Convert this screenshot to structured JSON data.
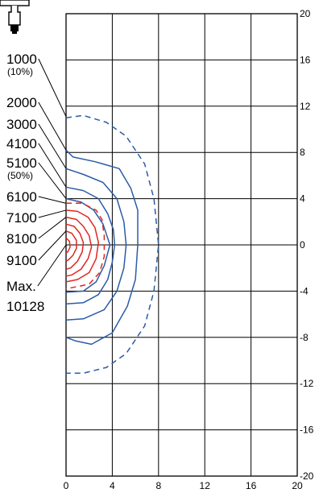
{
  "chart_data": {
    "type": "line",
    "title": "",
    "xlabel": "",
    "ylabel": "",
    "xlim": [
      0,
      20
    ],
    "ylim": [
      -20,
      20
    ],
    "x_ticks": [
      "0",
      "4",
      "8",
      "12",
      "16",
      "20"
    ],
    "y_ticks": [
      "20",
      "16",
      "12",
      "8",
      "4",
      "0",
      "-4",
      "-8",
      "-12",
      "-16",
      "-20"
    ],
    "grid": true,
    "colors": {
      "outer": "#2b5ca8",
      "inner": "#e0261f",
      "grid": "#000000"
    },
    "labels": [
      {
        "text": "1000",
        "sub": "(10%)"
      },
      {
        "text": "2000"
      },
      {
        "text": "3000"
      },
      {
        "text": "4100"
      },
      {
        "text": "5100",
        "sub": "(50%)"
      },
      {
        "text": "6100"
      },
      {
        "text": "7100"
      },
      {
        "text": "8100"
      },
      {
        "text": "9100"
      },
      {
        "text": "Max."
      },
      {
        "text": "10128"
      }
    ],
    "series": [
      {
        "level": "1000",
        "color": "#2b5ca8",
        "dashed": true,
        "points": [
          [
            0,
            11
          ],
          [
            1.5,
            11.2
          ],
          [
            3.5,
            10.6
          ],
          [
            5.2,
            9.4
          ],
          [
            6.8,
            7
          ],
          [
            7.6,
            4
          ],
          [
            8,
            0
          ],
          [
            7.6,
            -4
          ],
          [
            6.8,
            -7
          ],
          [
            5.2,
            -9.4
          ],
          [
            3.5,
            -10.6
          ],
          [
            1.5,
            -11.1
          ],
          [
            0,
            -11.1
          ]
        ]
      },
      {
        "level": "2000",
        "color": "#2b5ca8",
        "dashed": false,
        "points": [
          [
            0,
            8.2
          ],
          [
            0.6,
            7.6
          ],
          [
            2.5,
            7.2
          ],
          [
            4.6,
            6.6
          ],
          [
            5.6,
            4.9
          ],
          [
            6.2,
            3
          ],
          [
            6.2,
            0
          ],
          [
            6,
            -3
          ],
          [
            5.3,
            -5.3
          ],
          [
            4,
            -7.6
          ],
          [
            2.2,
            -8.6
          ],
          [
            0.8,
            -8.3
          ],
          [
            0,
            -8
          ]
        ]
      },
      {
        "level": "3000",
        "color": "#2b5ca8",
        "dashed": false,
        "points": [
          [
            0,
            6.6
          ],
          [
            1.5,
            6.1
          ],
          [
            3.2,
            5.4
          ],
          [
            4.4,
            4
          ],
          [
            5,
            2
          ],
          [
            5.2,
            0
          ],
          [
            5,
            -2
          ],
          [
            4.4,
            -4
          ],
          [
            3.3,
            -5.6
          ],
          [
            1.5,
            -6.4
          ],
          [
            0,
            -6.5
          ]
        ]
      },
      {
        "level": "4100",
        "color": "#2b5ca8",
        "dashed": false,
        "points": [
          [
            0,
            5
          ],
          [
            1.5,
            4.7
          ],
          [
            2.8,
            4
          ],
          [
            3.6,
            2.7
          ],
          [
            4.1,
            1.3
          ],
          [
            4.2,
            0
          ],
          [
            4,
            -1.5
          ],
          [
            3.6,
            -3
          ],
          [
            2.8,
            -4.3
          ],
          [
            1.5,
            -5
          ],
          [
            0,
            -5.1
          ]
        ]
      },
      {
        "level": "5100",
        "color": "#2b5ca8",
        "dashed": false,
        "points": [
          [
            0,
            4
          ],
          [
            1.3,
            3.7
          ],
          [
            2.4,
            3
          ],
          [
            3.2,
            1.8
          ],
          [
            3.8,
            0
          ],
          [
            3.3,
            -1.8
          ],
          [
            2.6,
            -3.2
          ],
          [
            1.5,
            -4
          ],
          [
            0,
            -4.1
          ]
        ]
      },
      {
        "level": "6100",
        "color": "#e0261f",
        "dashed": true,
        "points": [
          [
            0,
            3.6
          ],
          [
            1.4,
            3.6
          ],
          [
            2.6,
            3
          ],
          [
            3.1,
            2.2
          ],
          [
            3.3,
            0.8
          ],
          [
            3.3,
            -1
          ],
          [
            2.9,
            -2.4
          ],
          [
            2,
            -3.4
          ],
          [
            0,
            -3.8
          ]
        ]
      },
      {
        "level": "7100",
        "color": "#e0261f",
        "dashed": false,
        "points": [
          [
            0,
            3
          ],
          [
            1,
            2.9
          ],
          [
            1.9,
            2.4
          ],
          [
            2.5,
            1.5
          ],
          [
            2.8,
            0.2
          ],
          [
            2.6,
            -1.2
          ],
          [
            2,
            -2.4
          ],
          [
            1,
            -3
          ],
          [
            0,
            -3.2
          ]
        ]
      },
      {
        "level": "8100",
        "color": "#e0261f",
        "dashed": false,
        "points": [
          [
            0,
            2.4
          ],
          [
            0.9,
            2.2
          ],
          [
            1.5,
            1.6
          ],
          [
            2,
            0.8
          ],
          [
            2.2,
            -0.2
          ],
          [
            1.9,
            -1.2
          ],
          [
            1.3,
            -2.1
          ],
          [
            0.5,
            -2.6
          ],
          [
            0,
            -2.7
          ]
        ]
      },
      {
        "level": "8100b",
        "color": "#e0261f",
        "dashed": false,
        "points": [
          [
            0,
            1.8
          ],
          [
            0.7,
            1.6
          ],
          [
            1.2,
            1
          ],
          [
            1.5,
            0.2
          ],
          [
            1.4,
            -0.6
          ],
          [
            1,
            -1.4
          ],
          [
            0.4,
            -2
          ],
          [
            0,
            -2.1
          ]
        ]
      },
      {
        "level": "9100",
        "color": "#e0261f",
        "dashed": false,
        "points": [
          [
            0,
            1.2
          ],
          [
            0.5,
            1
          ],
          [
            0.9,
            0.4
          ],
          [
            0.9,
            -0.3
          ],
          [
            0.6,
            -0.9
          ],
          [
            0.2,
            -1.3
          ],
          [
            0,
            -1.4
          ]
        ]
      },
      {
        "level": "9100b",
        "color": "#e0261f",
        "dashed": false,
        "points": [
          [
            0,
            0.6
          ],
          [
            0.3,
            0.3
          ],
          [
            0.35,
            -0.2
          ],
          [
            0.15,
            -0.6
          ],
          [
            0,
            -0.7
          ]
        ]
      }
    ]
  }
}
